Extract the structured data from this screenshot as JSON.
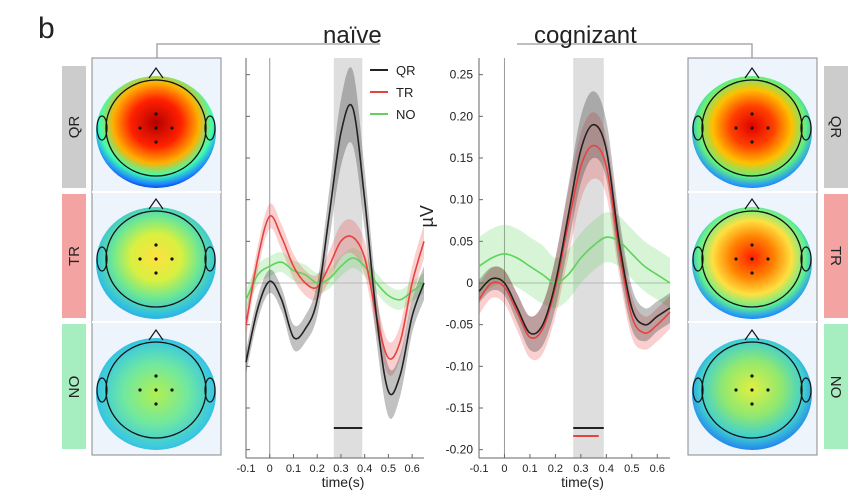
{
  "panel_letter": "b",
  "row_labels": [
    "QR",
    "TR",
    "NO"
  ],
  "colors": {
    "QR": "#222222",
    "TR": "#e8423f",
    "NO": "#5fd35a",
    "tag_QR": "#cccccc",
    "tag_TR": "#f4a3a3",
    "tag_NO": "#a6edc0",
    "window": "#dedede"
  },
  "chart_data": [
    {
      "type": "line",
      "title": "naïve",
      "xlabel": "time(s)",
      "ylabel": "",
      "xlim": [
        -0.1,
        0.65
      ],
      "ylim": [
        -0.21,
        0.27
      ],
      "xticks": [
        "-0.1",
        "0",
        "0.1",
        "0.2",
        "0.3",
        "0.4",
        "0.5",
        "0.6"
      ],
      "yticks": [],
      "shaded_window": [
        0.27,
        0.39
      ],
      "legend": [
        "QR",
        "TR",
        "NO"
      ],
      "legend_position": "top-right",
      "x": [
        -0.1,
        -0.05,
        0,
        0.05,
        0.1,
        0.15,
        0.2,
        0.25,
        0.3,
        0.35,
        0.4,
        0.45,
        0.5,
        0.55,
        0.6,
        0.65
      ],
      "series": [
        {
          "name": "QR",
          "values": [
            -0.095,
            -0.03,
            0.002,
            -0.02,
            -0.065,
            -0.055,
            -0.02,
            0.08,
            0.18,
            0.21,
            0.1,
            -0.04,
            -0.13,
            -0.11,
            -0.04,
            0.0
          ],
          "ci": [
            0.014,
            0.014,
            0.014,
            0.014,
            0.015,
            0.016,
            0.02,
            0.03,
            0.04,
            0.045,
            0.035,
            0.03,
            0.03,
            0.025,
            0.02,
            0.02
          ]
        },
        {
          "name": "TR",
          "values": [
            -0.05,
            0.03,
            0.08,
            0.055,
            0.02,
            0.0,
            -0.005,
            0.02,
            0.05,
            0.055,
            0.03,
            -0.04,
            -0.09,
            -0.07,
            0.0,
            0.05
          ],
          "ci": [
            0.015,
            0.015,
            0.015,
            0.015,
            0.015,
            0.015,
            0.015,
            0.018,
            0.02,
            0.02,
            0.02,
            0.02,
            0.02,
            0.02,
            0.02,
            0.02
          ]
        },
        {
          "name": "NO",
          "values": [
            -0.02,
            0.01,
            0.02,
            0.025,
            0.015,
            0.01,
            0.0,
            0.005,
            0.02,
            0.03,
            0.02,
            0.0,
            -0.015,
            -0.02,
            -0.01,
            0.0
          ],
          "ci": [
            0.012,
            0.012,
            0.012,
            0.012,
            0.012,
            0.012,
            0.012,
            0.012,
            0.012,
            0.012,
            0.012,
            0.012,
            0.012,
            0.012,
            0.012,
            0.012
          ]
        }
      ],
      "significance_bars": [
        {
          "series": "QR",
          "from": 0.27,
          "to": 0.39
        }
      ]
    },
    {
      "type": "line",
      "title": "cognizant",
      "xlabel": "time(s)",
      "ylabel": "µV",
      "xlim": [
        -0.1,
        0.65
      ],
      "ylim": [
        -0.21,
        0.27
      ],
      "xticks": [
        "-0.1",
        "0",
        "0.1",
        "0.2",
        "0.3",
        "0.4",
        "0.5",
        "0.6"
      ],
      "yticks": [
        "0.25",
        "0.20",
        "0.15",
        "0.10",
        "0.05",
        "0",
        "-0.05",
        "-0.10",
        "-0.15",
        "-0.20"
      ],
      "shaded_window": [
        0.27,
        0.39
      ],
      "x": [
        -0.1,
        -0.05,
        0,
        0.05,
        0.1,
        0.15,
        0.2,
        0.25,
        0.3,
        0.35,
        0.4,
        0.45,
        0.5,
        0.55,
        0.6,
        0.65
      ],
      "series": [
        {
          "name": "QR",
          "values": [
            -0.01,
            0.005,
            0.0,
            -0.03,
            -0.06,
            -0.05,
            0.0,
            0.08,
            0.16,
            0.19,
            0.16,
            0.05,
            -0.03,
            -0.05,
            -0.04,
            -0.03
          ],
          "ci": [
            0.014,
            0.014,
            0.015,
            0.017,
            0.02,
            0.025,
            0.03,
            0.035,
            0.04,
            0.04,
            0.035,
            0.03,
            0.025,
            0.02,
            0.018,
            0.018
          ]
        },
        {
          "name": "TR",
          "values": [
            -0.02,
            0.0,
            -0.005,
            -0.035,
            -0.065,
            -0.055,
            -0.005,
            0.07,
            0.14,
            0.165,
            0.14,
            0.04,
            -0.04,
            -0.06,
            -0.05,
            -0.035
          ],
          "ci": [
            0.018,
            0.018,
            0.02,
            0.022,
            0.025,
            0.03,
            0.035,
            0.04,
            0.04,
            0.04,
            0.035,
            0.03,
            0.025,
            0.02,
            0.02,
            0.02
          ]
        },
        {
          "name": "NO",
          "values": [
            0.02,
            0.03,
            0.035,
            0.03,
            0.02,
            0.01,
            0.0,
            0.01,
            0.03,
            0.045,
            0.055,
            0.05,
            0.035,
            0.02,
            0.01,
            0.0
          ],
          "ci": [
            0.035,
            0.035,
            0.035,
            0.035,
            0.035,
            0.035,
            0.03,
            0.03,
            0.03,
            0.03,
            0.03,
            0.03,
            0.03,
            0.03,
            0.03,
            0.03
          ]
        }
      ],
      "significance_bars": [
        {
          "series": "QR",
          "from": 0.27,
          "to": 0.39
        },
        {
          "series": "TR",
          "from": 0.27,
          "to": 0.37
        }
      ]
    }
  ]
}
